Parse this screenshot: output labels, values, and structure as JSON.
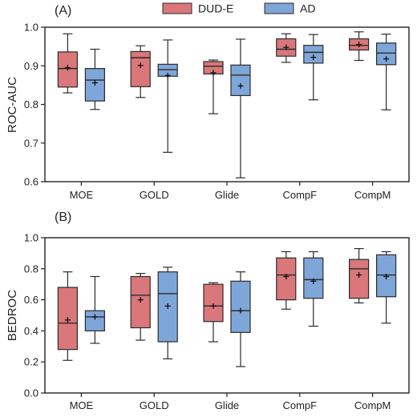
{
  "legend": {
    "position": "top-center",
    "items": [
      {
        "label": "DUD-E",
        "color": "#d9777a"
      },
      {
        "label": "AD",
        "color": "#7ea6d8"
      }
    ]
  },
  "colors": {
    "DUD-E_fill": "#d9777a",
    "AD_fill": "#7ea6d8",
    "box_edge": "#2b2b2b",
    "axis": "#222222"
  },
  "chart_data": [
    {
      "type": "boxplot",
      "panel_label": "(A)",
      "ylabel": "ROC-AUC",
      "ylim": [
        0.6,
        1.0
      ],
      "yticks": [
        0.6,
        0.7,
        0.8,
        0.9,
        1.0
      ],
      "ytick_labels": [
        "0.6",
        "0.7",
        "0.8",
        "0.9",
        "1.0"
      ],
      "grid": false,
      "categories": [
        "MOE",
        "GOLD",
        "Glide",
        "CompF",
        "CompM"
      ],
      "series": [
        {
          "name": "DUD-E",
          "boxes": [
            {
              "min": 0.83,
              "q1": 0.845,
              "median": 0.893,
              "q3": 0.936,
              "max": 0.983,
              "mean": 0.895
            },
            {
              "min": 0.818,
              "q1": 0.846,
              "median": 0.921,
              "q3": 0.937,
              "max": 0.952,
              "mean": 0.901
            },
            {
              "min": 0.776,
              "q1": 0.879,
              "median": 0.899,
              "q3": 0.911,
              "max": 0.915,
              "mean": 0.882
            },
            {
              "min": 0.909,
              "q1": 0.925,
              "median": 0.943,
              "q3": 0.97,
              "max": 0.983,
              "mean": 0.948
            },
            {
              "min": 0.914,
              "q1": 0.941,
              "median": 0.953,
              "q3": 0.97,
              "max": 0.988,
              "mean": 0.955
            }
          ]
        },
        {
          "name": "AD",
          "boxes": [
            {
              "min": 0.787,
              "q1": 0.809,
              "median": 0.863,
              "q3": 0.893,
              "max": 0.943,
              "mean": 0.856
            },
            {
              "min": 0.676,
              "q1": 0.873,
              "median": 0.89,
              "q3": 0.904,
              "max": 0.967,
              "mean": 0.875
            },
            {
              "min": 0.61,
              "q1": 0.823,
              "median": 0.876,
              "q3": 0.902,
              "max": 0.969,
              "mean": 0.848
            },
            {
              "min": 0.812,
              "q1": 0.907,
              "median": 0.935,
              "q3": 0.953,
              "max": 0.981,
              "mean": 0.922
            },
            {
              "min": 0.786,
              "q1": 0.903,
              "median": 0.933,
              "q3": 0.959,
              "max": 0.982,
              "mean": 0.918
            }
          ]
        }
      ]
    },
    {
      "type": "boxplot",
      "panel_label": "(B)",
      "ylabel": "BEDROC",
      "ylim": [
        0.0,
        1.0
      ],
      "yticks": [
        0.0,
        0.2,
        0.4,
        0.6,
        0.8,
        1.0
      ],
      "ytick_labels": [
        "0.0",
        "0.2",
        "0.4",
        "0.6",
        "0.8",
        "1.0"
      ],
      "grid": false,
      "categories": [
        "MOE",
        "GOLD",
        "Glide",
        "CompF",
        "CompM"
      ],
      "series": [
        {
          "name": "DUD-E",
          "boxes": [
            {
              "min": 0.21,
              "q1": 0.28,
              "median": 0.45,
              "q3": 0.68,
              "max": 0.78,
              "mean": 0.47
            },
            {
              "min": 0.34,
              "q1": 0.42,
              "median": 0.63,
              "q3": 0.75,
              "max": 0.77,
              "mean": 0.6
            },
            {
              "min": 0.33,
              "q1": 0.46,
              "median": 0.56,
              "q3": 0.7,
              "max": 0.71,
              "mean": 0.56
            },
            {
              "min": 0.54,
              "q1": 0.6,
              "median": 0.76,
              "q3": 0.87,
              "max": 0.91,
              "mean": 0.75
            },
            {
              "min": 0.58,
              "q1": 0.61,
              "median": 0.8,
              "q3": 0.86,
              "max": 0.93,
              "mean": 0.76
            }
          ]
        },
        {
          "name": "AD",
          "boxes": [
            {
              "min": 0.32,
              "q1": 0.4,
              "median": 0.49,
              "q3": 0.53,
              "max": 0.75,
              "mean": 0.49
            },
            {
              "min": 0.22,
              "q1": 0.33,
              "median": 0.64,
              "q3": 0.78,
              "max": 0.81,
              "mean": 0.56
            },
            {
              "min": 0.17,
              "q1": 0.39,
              "median": 0.53,
              "q3": 0.72,
              "max": 0.78,
              "mean": 0.53
            },
            {
              "min": 0.43,
              "q1": 0.61,
              "median": 0.73,
              "q3": 0.87,
              "max": 0.91,
              "mean": 0.72
            },
            {
              "min": 0.45,
              "q1": 0.62,
              "median": 0.76,
              "q3": 0.89,
              "max": 0.91,
              "mean": 0.75
            }
          ]
        }
      ]
    }
  ]
}
